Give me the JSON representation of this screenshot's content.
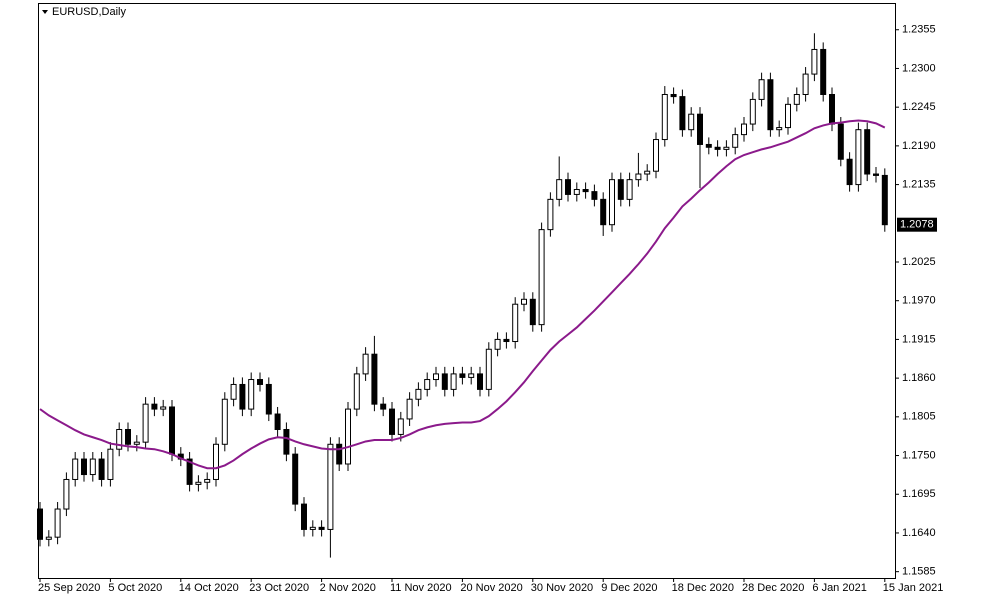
{
  "chart_data": {
    "type": "candlestick",
    "title": "EURUSD,Daily",
    "categories": [
      "25 Sep 2020",
      null,
      null,
      null,
      null,
      null,
      null,
      null,
      "5 Oct 2020",
      null,
      null,
      null,
      null,
      null,
      null,
      null,
      "14 Oct 2020",
      null,
      null,
      null,
      null,
      null,
      null,
      null,
      "23 Oct 2020",
      null,
      null,
      null,
      null,
      null,
      null,
      null,
      "2 Nov 2020",
      null,
      null,
      null,
      null,
      null,
      null,
      null,
      "11 Nov 2020",
      null,
      null,
      null,
      null,
      null,
      null,
      null,
      "20 Nov 2020",
      null,
      null,
      null,
      null,
      null,
      null,
      null,
      "30 Nov 2020",
      null,
      null,
      null,
      null,
      null,
      null,
      null,
      "9 Dec 2020",
      null,
      null,
      null,
      null,
      null,
      null,
      null,
      "18 Dec 2020",
      null,
      null,
      null,
      null,
      null,
      null,
      null,
      "28 Dec 2020",
      null,
      null,
      null,
      null,
      null,
      null,
      null,
      "6 Jan 2021",
      null,
      null,
      null,
      null,
      null,
      null,
      null,
      "15 Jan 2021"
    ],
    "open": [
      1.1674,
      1.1631,
      1.1634,
      1.1674,
      1.1716,
      1.1745,
      1.1723,
      1.1745,
      1.1716,
      1.1759,
      1.1787,
      1.1766,
      1.1769,
      1.1823,
      1.1816,
      1.1819,
      1.1752,
      1.1745,
      1.1709,
      1.1712,
      1.1716,
      1.1766,
      1.183,
      1.1851,
      1.1816,
      1.1858,
      1.1851,
      1.1809,
      1.1787,
      1.1752,
      1.1681,
      1.1645,
      1.1648,
      1.1645,
      1.1766,
      1.1738,
      1.1816,
      1.1866,
      1.1894,
      1.1823,
      1.1816,
      1.178,
      1.1802,
      1.183,
      1.1844,
      1.1858,
      1.1866,
      1.1844,
      1.1866,
      1.1861,
      1.1866,
      1.1844,
      1.1901,
      1.1915,
      1.1912,
      1.1965,
      1.1972,
      1.1936,
      1.2071,
      1.2114,
      1.2142,
      1.2121,
      1.2128,
      1.2125,
      1.2114,
      1.2078,
      1.2142,
      1.2114,
      1.2142,
      1.215,
      1.2154,
      1.2199,
      1.2263,
      1.226,
      1.2213,
      1.2235,
      1.2192,
      1.2188,
      1.2185,
      1.2188,
      1.2206,
      1.2221,
      1.2256,
      1.2284,
      1.2213,
      1.2216,
      1.2249,
      1.2263,
      1.2292,
      1.2327,
      1.2263,
      1.2221,
      1.2171,
      1.2135,
      1.2213,
      1.215,
      1.2148
    ],
    "high": [
      1.1684,
      1.1644,
      1.1684,
      1.1726,
      1.1755,
      1.1755,
      1.1755,
      1.1755,
      1.1769,
      1.1797,
      1.1797,
      1.1779,
      1.1833,
      1.1833,
      1.1829,
      1.1829,
      1.1762,
      1.1755,
      1.1722,
      1.1726,
      1.1776,
      1.184,
      1.1861,
      1.1861,
      1.1868,
      1.1868,
      1.1861,
      1.1819,
      1.1797,
      1.1762,
      1.1691,
      1.1658,
      1.1658,
      1.1776,
      1.1776,
      1.1826,
      1.1876,
      1.1904,
      1.192,
      1.1833,
      1.1826,
      1.1812,
      1.184,
      1.1854,
      1.1868,
      1.1876,
      1.1876,
      1.1876,
      1.1876,
      1.1876,
      1.1876,
      1.1911,
      1.1925,
      1.1925,
      1.1975,
      1.1982,
      1.1982,
      1.2081,
      1.2124,
      1.2175,
      1.2152,
      1.2138,
      1.2138,
      1.2135,
      1.2124,
      1.2152,
      1.2152,
      1.2152,
      1.218,
      1.2164,
      1.2209,
      1.2275,
      1.2273,
      1.227,
      1.2245,
      1.2245,
      1.2202,
      1.2198,
      1.2198,
      1.2216,
      1.2231,
      1.2266,
      1.2294,
      1.2294,
      1.2226,
      1.2259,
      1.2273,
      1.2302,
      1.235,
      1.2337,
      1.2273,
      1.2231,
      1.2181,
      1.2223,
      1.2223,
      1.216,
      1.2158
    ],
    "low": [
      1.1621,
      1.1621,
      1.1624,
      1.1664,
      1.1706,
      1.1713,
      1.1713,
      1.1706,
      1.1706,
      1.1749,
      1.1756,
      1.1756,
      1.1759,
      1.1806,
      1.1806,
      1.1742,
      1.1735,
      1.1699,
      1.1699,
      1.1702,
      1.1706,
      1.1756,
      1.182,
      1.1806,
      1.1806,
      1.1841,
      1.1799,
      1.1777,
      1.1742,
      1.1671,
      1.1635,
      1.1635,
      1.1635,
      1.1605,
      1.1728,
      1.1728,
      1.1806,
      1.1856,
      1.1813,
      1.1806,
      1.177,
      1.177,
      1.1792,
      1.182,
      1.1834,
      1.1848,
      1.1834,
      1.1834,
      1.1851,
      1.1851,
      1.1834,
      1.1834,
      1.1891,
      1.1902,
      1.1902,
      1.1955,
      1.1926,
      1.1926,
      1.2061,
      1.2104,
      1.2111,
      1.2111,
      1.2115,
      1.2104,
      1.2062,
      1.2068,
      1.2104,
      1.2104,
      1.2132,
      1.214,
      1.2144,
      1.2189,
      1.225,
      1.2203,
      1.2203,
      1.213,
      1.2178,
      1.2175,
      1.2175,
      1.2178,
      1.2196,
      1.2211,
      1.2246,
      1.2203,
      1.2203,
      1.2206,
      1.2239,
      1.2253,
      1.2282,
      1.2253,
      1.2211,
      1.2161,
      1.2125,
      1.2125,
      1.214,
      1.2138,
      1.2068
    ],
    "close": [
      1.1631,
      1.1634,
      1.1674,
      1.1716,
      1.1745,
      1.1723,
      1.1745,
      1.1716,
      1.1759,
      1.1787,
      1.1766,
      1.1769,
      1.1823,
      1.1816,
      1.1819,
      1.1752,
      1.1745,
      1.1709,
      1.1712,
      1.1716,
      1.1766,
      1.183,
      1.1851,
      1.1816,
      1.1858,
      1.1851,
      1.1809,
      1.1787,
      1.1752,
      1.1681,
      1.1645,
      1.1648,
      1.1645,
      1.1766,
      1.1738,
      1.1816,
      1.1866,
      1.1894,
      1.1823,
      1.1816,
      1.178,
      1.1802,
      1.183,
      1.1844,
      1.1858,
      1.1866,
      1.1844,
      1.1866,
      1.1861,
      1.1866,
      1.1844,
      1.1901,
      1.1915,
      1.1912,
      1.1965,
      1.1972,
      1.1936,
      1.2071,
      1.2114,
      1.2142,
      1.2121,
      1.2128,
      1.2125,
      1.2114,
      1.2078,
      1.2142,
      1.2114,
      1.2142,
      1.215,
      1.2154,
      1.2199,
      1.2263,
      1.226,
      1.2213,
      1.2235,
      1.2192,
      1.2188,
      1.2185,
      1.2188,
      1.2206,
      1.2221,
      1.2256,
      1.2284,
      1.2213,
      1.2216,
      1.2249,
      1.2263,
      1.2292,
      1.2327,
      1.2263,
      1.2221,
      1.2171,
      1.2135,
      1.2213,
      1.215,
      1.2148,
      1.2078
    ],
    "up_color": "#ffffff",
    "down_color": "#000000",
    "ma": {
      "color": "#8b1a8b",
      "values": [
        1.1816,
        1.1807,
        1.18,
        1.1793,
        1.1786,
        1.178,
        1.1776,
        1.1772,
        1.1767,
        1.1765,
        1.1763,
        1.1762,
        1.176,
        1.1759,
        1.1756,
        1.1752,
        1.1746,
        1.1741,
        1.1736,
        1.1732,
        1.1732,
        1.1736,
        1.1743,
        1.1752,
        1.176,
        1.1767,
        1.1773,
        1.1776,
        1.1775,
        1.177,
        1.1766,
        1.1763,
        1.176,
        1.1759,
        1.1759,
        1.1762,
        1.1766,
        1.177,
        1.1772,
        1.1772,
        1.1772,
        1.1775,
        1.178,
        1.1786,
        1.179,
        1.1793,
        1.1795,
        1.1796,
        1.1797,
        1.1797,
        1.1799,
        1.1806,
        1.1816,
        1.1827,
        1.184,
        1.1854,
        1.187,
        1.1885,
        1.19,
        1.1912,
        1.1922,
        1.1932,
        1.1944,
        1.1956,
        1.1969,
        1.1982,
        1.1995,
        1.2008,
        1.2022,
        1.2037,
        1.2054,
        1.2073,
        1.2088,
        1.2104,
        1.2115,
        1.2127,
        1.2138,
        1.215,
        1.2161,
        1.2171,
        1.2177,
        1.2181,
        1.2185,
        1.2188,
        1.2192,
        1.2196,
        1.2202,
        1.2208,
        1.2215,
        1.2219,
        1.2222,
        1.2223,
        1.2225,
        1.2226,
        1.2225,
        1.2222,
        1.2216
      ]
    },
    "ylim": [
      1.1576,
      1.2393
    ],
    "yticks": [
      1.2355,
      {
        "value": 1.23,
        "label": "1.2300"
      },
      1.2245,
      {
        "value": 1.219,
        "label": "1.2190"
      },
      1.2135,
      1.2025,
      {
        "value": 1.197,
        "label": "1.1970"
      },
      1.1915,
      {
        "value": 1.186,
        "label": "1.1860"
      },
      1.1805,
      {
        "value": 1.175,
        "label": "1.1750"
      },
      1.1695,
      {
        "value": 1.164,
        "label": "1.1640"
      },
      1.1585
    ],
    "grid": false
  }
}
